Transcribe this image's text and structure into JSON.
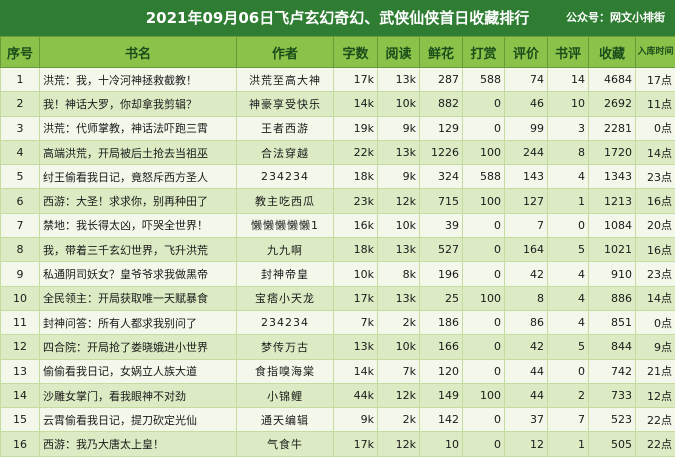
{
  "header": {
    "title": "2021年09月06日飞卢玄幻奇幻、武侠仙侠首日收藏排行",
    "subtitle": "公众号：网文小排街"
  },
  "columns": [
    "序号",
    "书名",
    "作者",
    "字数",
    "阅读",
    "鲜花",
    "打赏",
    "评价",
    "书评",
    "收藏",
    "入库时间"
  ],
  "rows": [
    {
      "no": "1",
      "title": "洪荒：我，十冷河神拯救截教！",
      "author": "洪荒至高大神",
      "words": "17k",
      "reads": "13k",
      "flowers": "287",
      "tips": "588",
      "ratings": "74",
      "reviews": "14",
      "favorites": "4684",
      "time": "17点"
    },
    {
      "no": "2",
      "title": "我！神话大罗，你却拿我剪辑？",
      "author": "神豪享受快乐",
      "words": "14k",
      "reads": "10k",
      "flowers": "882",
      "tips": "0",
      "ratings": "46",
      "reviews": "10",
      "favorites": "2692",
      "time": "11点"
    },
    {
      "no": "3",
      "title": "洪荒：代师掌教，神话法吓跑三霄",
      "author": "王者西游",
      "words": "19k",
      "reads": "9k",
      "flowers": "129",
      "tips": "0",
      "ratings": "99",
      "reviews": "3",
      "favorites": "2281",
      "time": "0点"
    },
    {
      "no": "4",
      "title": "高端洪荒，开局被后土抢去当祖巫",
      "author": "合法穿越",
      "words": "22k",
      "reads": "13k",
      "flowers": "1226",
      "tips": "100",
      "ratings": "244",
      "reviews": "8",
      "favorites": "1720",
      "time": "14点"
    },
    {
      "no": "5",
      "title": "纣王偷看我日记，竟怒斥西方圣人",
      "author": "234234",
      "words": "18k",
      "reads": "9k",
      "flowers": "324",
      "tips": "588",
      "ratings": "143",
      "reviews": "4",
      "favorites": "1343",
      "time": "23点"
    },
    {
      "no": "6",
      "title": "西游：大圣！求求你，别再种田了",
      "author": "教主吃西瓜",
      "words": "23k",
      "reads": "12k",
      "flowers": "715",
      "tips": "100",
      "ratings": "127",
      "reviews": "1",
      "favorites": "1213",
      "time": "16点"
    },
    {
      "no": "7",
      "title": "禁地：我长得太凶，吓哭全世界！",
      "author": "懒懒懒懒懒1",
      "words": "16k",
      "reads": "10k",
      "flowers": "39",
      "tips": "0",
      "ratings": "7",
      "reviews": "0",
      "favorites": "1084",
      "time": "20点"
    },
    {
      "no": "8",
      "title": "我，带着三千玄幻世界，飞升洪荒",
      "author": "九九啊",
      "words": "18k",
      "reads": "13k",
      "flowers": "527",
      "tips": "0",
      "ratings": "164",
      "reviews": "5",
      "favorites": "1021",
      "time": "16点"
    },
    {
      "no": "9",
      "title": "私通阴司妖女？皇爷爷求我做黑帝",
      "author": "封神帝皇",
      "words": "10k",
      "reads": "8k",
      "flowers": "196",
      "tips": "0",
      "ratings": "42",
      "reviews": "4",
      "favorites": "910",
      "time": "23点"
    },
    {
      "no": "10",
      "title": "全民领主：开局获取唯一天赋暴食",
      "author": "宝痞小天龙",
      "words": "17k",
      "reads": "13k",
      "flowers": "25",
      "tips": "100",
      "ratings": "8",
      "reviews": "4",
      "favorites": "886",
      "time": "14点"
    },
    {
      "no": "11",
      "title": "封神问答：所有人都求我别问了",
      "author": "234234",
      "words": "7k",
      "reads": "2k",
      "flowers": "186",
      "tips": "0",
      "ratings": "86",
      "reviews": "4",
      "favorites": "851",
      "time": "0点"
    },
    {
      "no": "12",
      "title": "四合院：开局抢了娄晓娥进小世界",
      "author": "梦传万古",
      "words": "13k",
      "reads": "10k",
      "flowers": "166",
      "tips": "0",
      "ratings": "42",
      "reviews": "5",
      "favorites": "844",
      "time": "9点"
    },
    {
      "no": "13",
      "title": "偷偷看我日记，女娲立人族大道",
      "author": "食指嗅海棠",
      "words": "14k",
      "reads": "7k",
      "flowers": "120",
      "tips": "0",
      "ratings": "44",
      "reviews": "0",
      "favorites": "742",
      "time": "21点"
    },
    {
      "no": "14",
      "title": "沙雕女掌门，看我眼神不对劲",
      "author": "小锦鲤",
      "words": "44k",
      "reads": "12k",
      "flowers": "149",
      "tips": "100",
      "ratings": "44",
      "reviews": "2",
      "favorites": "733",
      "time": "12点"
    },
    {
      "no": "15",
      "title": "云霄偷看我日记，提刀砍定光仙",
      "author": "通天编辑",
      "words": "9k",
      "reads": "2k",
      "flowers": "142",
      "tips": "0",
      "ratings": "37",
      "reviews": "7",
      "favorites": "523",
      "time": "22点"
    },
    {
      "no": "16",
      "title": "西游：我乃大唐太上皇！",
      "author": "气食牛",
      "words": "17k",
      "reads": "12k",
      "flowers": "10",
      "tips": "0",
      "ratings": "12",
      "reviews": "1",
      "favorites": "505",
      "time": "22点"
    }
  ]
}
